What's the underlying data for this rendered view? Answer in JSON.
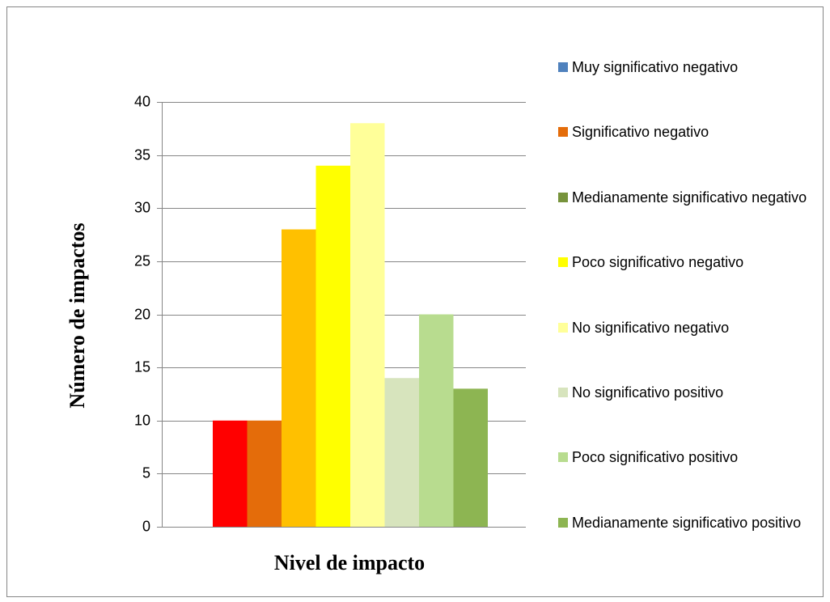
{
  "chart_data": {
    "type": "bar",
    "y_label": "Número de impactos",
    "x_label": "Nivel de impacto",
    "categories": [
      null
    ],
    "series": [
      {
        "name": "Muy significativo negativo",
        "color": "#ff0000",
        "legend_color": "#4f81bd",
        "values": [
          10
        ]
      },
      {
        "name": "Significativo negativo",
        "color": "#e46c0a",
        "legend_color": "#e46c0a",
        "values": [
          10
        ]
      },
      {
        "name": "Medianamente significativo negativo",
        "color": "#ffc000",
        "legend_color": "#77933c",
        "values": [
          28
        ]
      },
      {
        "name": "Poco significativo negativo",
        "color": "#ffff00",
        "legend_color": "#ffff00",
        "values": [
          34
        ]
      },
      {
        "name": "No significativo negativo",
        "color": "#ffff99",
        "legend_color": "#ffff99",
        "values": [
          38
        ]
      },
      {
        "name": "No significativo positivo",
        "color": "#d7e4bd",
        "legend_color": "#d7e4bd",
        "values": [
          14
        ]
      },
      {
        "name": "Poco significativo positivo",
        "color": "#b8dc8f",
        "legend_color": "#b8dc8f",
        "values": [
          20
        ]
      },
      {
        "name": "Medianamente significativo positivo",
        "color": "#8db552",
        "legend_color": "#8db552",
        "values": [
          13
        ]
      }
    ],
    "ylim": [
      0,
      40
    ],
    "yticks": [
      0,
      5,
      10,
      15,
      20,
      25,
      30,
      35,
      40
    ],
    "grid": true,
    "legend": "right"
  }
}
